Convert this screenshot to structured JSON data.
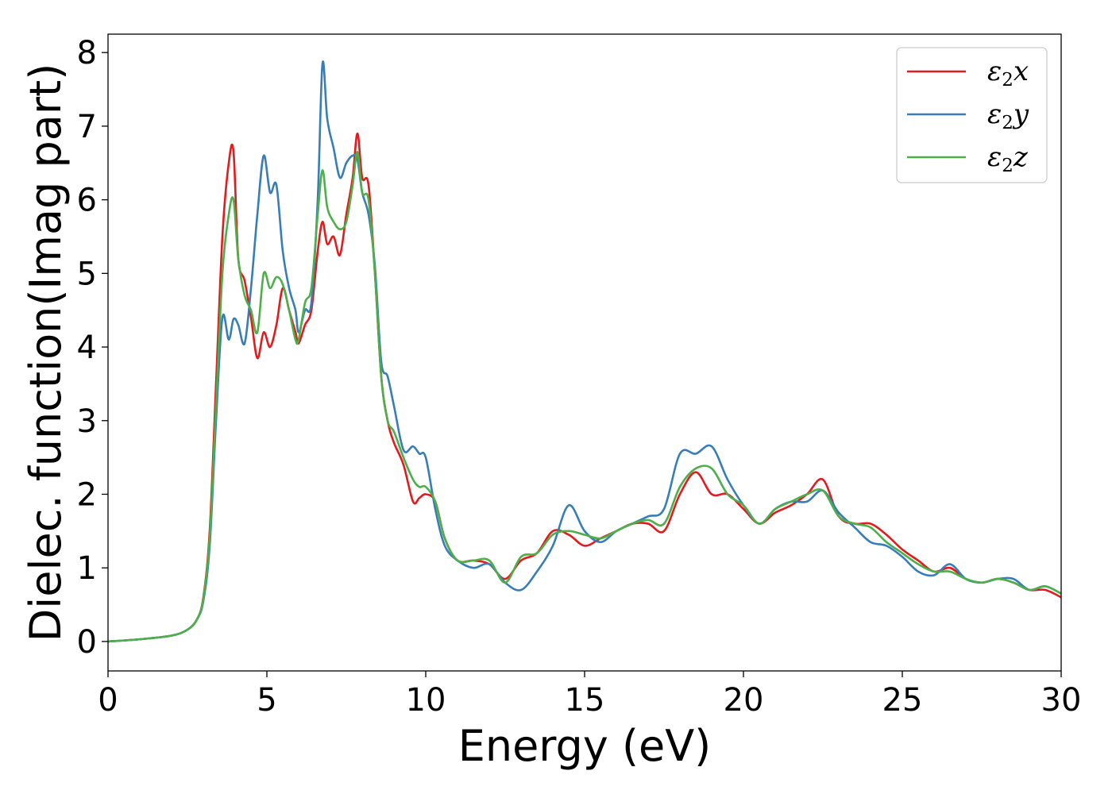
{
  "chart_data": {
    "type": "line",
    "title": "",
    "xlabel": "Energy (eV)",
    "ylabel": "Dielec. function(Imag part)",
    "xlim": [
      0,
      30
    ],
    "ylim": [
      -0.4,
      8.25
    ],
    "xticks": [
      0,
      5,
      10,
      15,
      20,
      25,
      30
    ],
    "yticks": [
      0,
      1,
      2,
      3,
      4,
      5,
      6,
      7,
      8
    ],
    "grid": false,
    "legend_position": "top-right",
    "series": [
      {
        "name": "ε2x",
        "legend": {
          "base": "ε",
          "sub": "2",
          "suffix": "x"
        },
        "color": "#e41a1c",
        "x": [
          0,
          1,
          2,
          2.5,
          2.8,
          3.0,
          3.2,
          3.4,
          3.6,
          3.8,
          3.95,
          4.1,
          4.3,
          4.5,
          4.7,
          4.9,
          5.1,
          5.3,
          5.5,
          5.7,
          5.9,
          6.0,
          6.2,
          6.4,
          6.6,
          6.75,
          6.9,
          7.1,
          7.3,
          7.5,
          7.7,
          7.85,
          8.0,
          8.2,
          8.4,
          8.6,
          8.8,
          9.0,
          9.3,
          9.6,
          9.8,
          10.0,
          10.3,
          10.6,
          11.0,
          11.5,
          12.0,
          12.5,
          13.0,
          13.5,
          14.0,
          14.5,
          15.0,
          15.5,
          16.0,
          16.5,
          17.0,
          17.5,
          18.0,
          18.5,
          19.0,
          19.5,
          20.0,
          20.5,
          21.0,
          21.5,
          22.0,
          22.5,
          23.0,
          23.5,
          24.0,
          24.5,
          25.0,
          25.5,
          26.0,
          26.5,
          27.0,
          27.5,
          28.0,
          28.5,
          29.0,
          29.5,
          30.0
        ],
        "values": [
          0.0,
          0.03,
          0.08,
          0.16,
          0.3,
          0.6,
          1.5,
          3.5,
          5.5,
          6.5,
          6.65,
          5.2,
          4.9,
          4.4,
          3.85,
          4.2,
          4.0,
          4.3,
          4.8,
          4.5,
          4.2,
          4.05,
          4.3,
          4.5,
          5.3,
          5.7,
          5.4,
          5.5,
          5.25,
          5.8,
          6.3,
          6.9,
          6.3,
          6.2,
          5.0,
          3.6,
          3.0,
          2.7,
          2.4,
          1.9,
          1.95,
          2.0,
          1.9,
          1.4,
          1.1,
          1.1,
          1.05,
          0.85,
          1.1,
          1.2,
          1.5,
          1.45,
          1.3,
          1.4,
          1.5,
          1.6,
          1.6,
          1.5,
          2.0,
          2.3,
          2.0,
          2.0,
          1.8,
          1.6,
          1.75,
          1.85,
          2.0,
          2.2,
          1.7,
          1.6,
          1.6,
          1.45,
          1.25,
          1.1,
          0.95,
          1.0,
          0.85,
          0.8,
          0.85,
          0.8,
          0.7,
          0.7,
          0.6
        ]
      },
      {
        "name": "ε2y",
        "legend": {
          "base": "ε",
          "sub": "2",
          "suffix": "y"
        },
        "color": "#377eb8",
        "x": [
          0,
          1,
          2,
          2.5,
          2.8,
          3.0,
          3.2,
          3.4,
          3.6,
          3.8,
          3.95,
          4.1,
          4.3,
          4.5,
          4.7,
          4.9,
          5.1,
          5.3,
          5.5,
          5.7,
          5.9,
          6.0,
          6.2,
          6.4,
          6.6,
          6.75,
          6.9,
          7.1,
          7.3,
          7.5,
          7.7,
          7.85,
          8.0,
          8.2,
          8.4,
          8.6,
          8.8,
          9.0,
          9.3,
          9.6,
          9.8,
          10.0,
          10.3,
          10.6,
          11.0,
          11.5,
          12.0,
          12.5,
          13.0,
          13.5,
          14.0,
          14.5,
          15.0,
          15.5,
          16.0,
          16.5,
          17.0,
          17.5,
          18.0,
          18.5,
          19.0,
          19.5,
          20.0,
          20.5,
          21.0,
          21.5,
          22.0,
          22.5,
          23.0,
          23.5,
          24.0,
          24.5,
          25.0,
          25.5,
          26.0,
          26.5,
          27.0,
          27.5,
          28.0,
          28.5,
          29.0,
          29.5,
          30.0
        ],
        "values": [
          0.0,
          0.03,
          0.08,
          0.16,
          0.3,
          0.55,
          1.3,
          3.0,
          4.4,
          4.1,
          4.38,
          4.3,
          4.05,
          4.8,
          5.8,
          6.6,
          6.1,
          6.2,
          5.3,
          4.8,
          4.5,
          4.2,
          4.5,
          4.6,
          6.0,
          7.85,
          7.1,
          6.7,
          6.3,
          6.5,
          6.6,
          6.55,
          6.1,
          5.8,
          5.1,
          3.8,
          3.6,
          3.2,
          2.6,
          2.65,
          2.55,
          2.5,
          1.8,
          1.3,
          1.1,
          1.0,
          1.05,
          0.8,
          0.7,
          0.95,
          1.3,
          1.85,
          1.5,
          1.35,
          1.5,
          1.6,
          1.7,
          1.8,
          2.55,
          2.55,
          2.65,
          2.2,
          1.85,
          1.6,
          1.8,
          1.9,
          1.9,
          2.05,
          1.75,
          1.55,
          1.35,
          1.3,
          1.15,
          0.95,
          0.9,
          1.05,
          0.85,
          0.8,
          0.85,
          0.85,
          0.7,
          0.75,
          0.65
        ]
      },
      {
        "name": "ε2z",
        "legend": {
          "base": "ε",
          "sub": "2",
          "suffix": "z"
        },
        "color": "#4daf4a",
        "x": [
          0,
          1,
          2,
          2.5,
          2.8,
          3.0,
          3.2,
          3.4,
          3.6,
          3.8,
          3.95,
          4.1,
          4.3,
          4.5,
          4.7,
          4.9,
          5.1,
          5.3,
          5.5,
          5.7,
          5.9,
          6.0,
          6.2,
          6.4,
          6.6,
          6.75,
          6.9,
          7.1,
          7.3,
          7.5,
          7.7,
          7.85,
          8.0,
          8.2,
          8.4,
          8.6,
          8.8,
          9.0,
          9.3,
          9.6,
          9.8,
          10.0,
          10.3,
          10.6,
          11.0,
          11.5,
          12.0,
          12.5,
          13.0,
          13.5,
          14.0,
          14.5,
          15.0,
          15.5,
          16.0,
          16.5,
          17.0,
          17.5,
          18.0,
          18.5,
          19.0,
          19.5,
          20.0,
          20.5,
          21.0,
          21.5,
          22.0,
          22.5,
          23.0,
          23.5,
          24.0,
          24.5,
          25.0,
          25.5,
          26.0,
          26.5,
          27.0,
          27.5,
          28.0,
          28.5,
          29.0,
          29.5,
          30.0
        ],
        "values": [
          0.0,
          0.03,
          0.08,
          0.16,
          0.3,
          0.58,
          1.4,
          3.2,
          5.0,
          5.8,
          6.0,
          5.2,
          4.7,
          4.5,
          4.2,
          5.0,
          4.8,
          4.95,
          4.85,
          4.5,
          4.1,
          4.1,
          4.6,
          4.8,
          5.8,
          6.4,
          5.9,
          5.7,
          5.6,
          5.7,
          6.2,
          6.65,
          6.1,
          6.0,
          5.0,
          3.6,
          3.0,
          2.85,
          2.5,
          2.2,
          2.1,
          2.1,
          1.9,
          1.4,
          1.1,
          1.1,
          1.1,
          0.8,
          1.15,
          1.2,
          1.45,
          1.5,
          1.45,
          1.4,
          1.5,
          1.6,
          1.65,
          1.6,
          2.1,
          2.35,
          2.35,
          2.0,
          1.85,
          1.6,
          1.8,
          1.9,
          2.0,
          2.05,
          1.7,
          1.6,
          1.55,
          1.35,
          1.2,
          1.05,
          0.95,
          0.95,
          0.85,
          0.8,
          0.85,
          0.8,
          0.7,
          0.75,
          0.65
        ]
      }
    ]
  }
}
